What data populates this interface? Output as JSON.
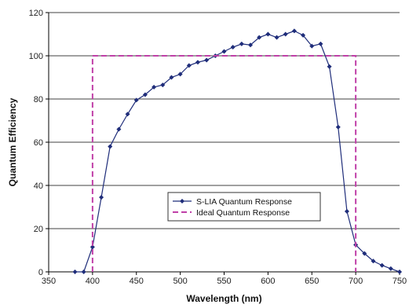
{
  "chart_data": {
    "type": "line",
    "title": "",
    "xlabel": "Wavelength (nm)",
    "ylabel": "Quantum Efficiency",
    "xlim": [
      350,
      750
    ],
    "ylim": [
      0,
      120
    ],
    "x_ticks": [
      350,
      400,
      450,
      500,
      550,
      600,
      650,
      700,
      750
    ],
    "y_ticks": [
      0,
      20,
      40,
      60,
      80,
      100,
      120
    ],
    "grid": "horizontal",
    "legend_position": "lower-center",
    "series": [
      {
        "name": "S-LIA Quantum Response",
        "color": "#1f2d7a",
        "marker": "diamond",
        "line_style": "solid",
        "x": [
          380,
          390,
          400,
          410,
          420,
          430,
          440,
          450,
          460,
          470,
          480,
          490,
          500,
          510,
          520,
          530,
          540,
          550,
          560,
          570,
          580,
          590,
          600,
          610,
          620,
          630,
          640,
          650,
          660,
          670,
          680,
          690,
          700,
          710,
          720,
          730,
          740,
          750
        ],
        "y": [
          0,
          0,
          11.5,
          34.5,
          58,
          66,
          73,
          79.5,
          82,
          85.5,
          86.5,
          90,
          91.5,
          95.5,
          97,
          98,
          100,
          102,
          104,
          105.5,
          105,
          108.5,
          110,
          108.5,
          110,
          111.5,
          109.5,
          104.5,
          105.5,
          95,
          67,
          28,
          12.5,
          8.5,
          5,
          3,
          1.5,
          0
        ]
      },
      {
        "name": "Ideal Quantum Response",
        "color": "#c040a8",
        "marker": "none",
        "line_style": "dashed",
        "x": [
          400,
          400,
          700,
          700
        ],
        "y": [
          0,
          100,
          100,
          0
        ]
      }
    ]
  }
}
